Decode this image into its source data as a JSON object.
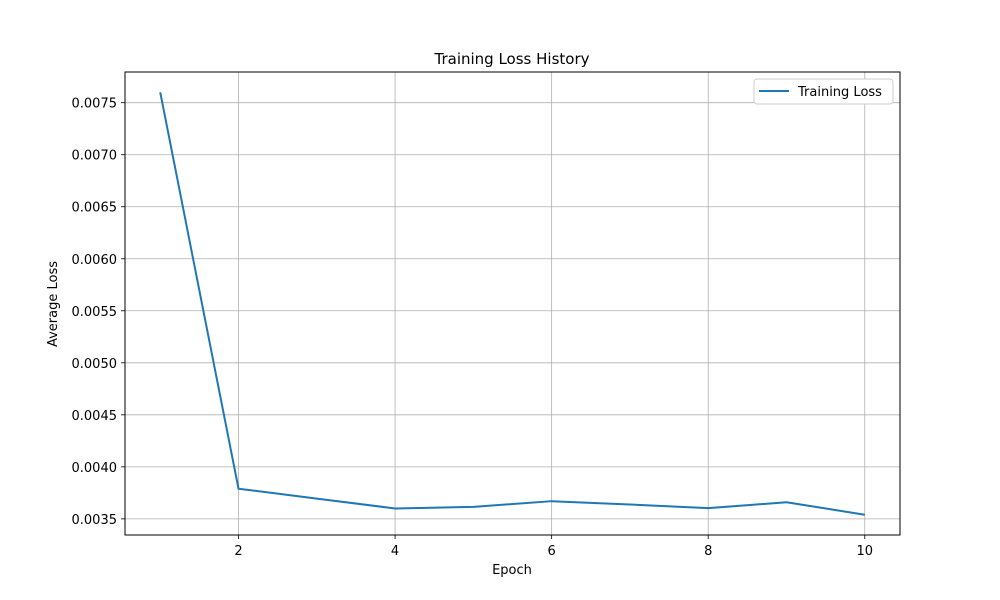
{
  "chart_data": {
    "type": "line",
    "title": "Training Loss History",
    "xlabel": "Epoch",
    "ylabel": "Average Loss",
    "x": [
      1,
      2,
      3,
      4,
      5,
      6,
      7,
      8,
      9,
      10
    ],
    "series": [
      {
        "name": "Training Loss",
        "color": "#1f77b4",
        "values": [
          0.0076,
          0.00379,
          0.003695,
          0.0036,
          0.003615,
          0.00367,
          0.003638,
          0.003603,
          0.00366,
          0.00354
        ]
      }
    ],
    "xlim": [
      0.55,
      10.45
    ],
    "ylim": [
      0.003345,
      0.007795
    ],
    "xticks": [
      2,
      4,
      6,
      8,
      10
    ],
    "xtick_labels": [
      "2",
      "4",
      "6",
      "8",
      "10"
    ],
    "yticks": [
      0.0035,
      0.004,
      0.0045,
      0.005,
      0.0055,
      0.006,
      0.0065,
      0.007,
      0.0075
    ],
    "ytick_labels": [
      "0.0035",
      "0.0040",
      "0.0045",
      "0.0050",
      "0.0055",
      "0.0060",
      "0.0065",
      "0.0070",
      "0.0075"
    ],
    "grid": true,
    "legend_position": "top-right"
  }
}
